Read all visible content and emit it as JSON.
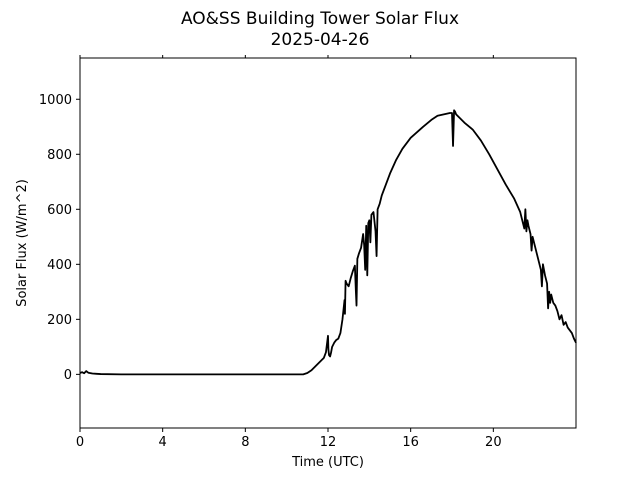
{
  "chart_data": {
    "type": "line",
    "title": "AO&SS Building Tower Solar Flux",
    "subtitle": "2025-04-26",
    "xlabel": "Time (UTC)",
    "ylabel": "Solar Flux (W/m^2)",
    "xlim": [
      0,
      24
    ],
    "ylim": [
      -195,
      1150
    ],
    "x_ticks": [
      0,
      4,
      8,
      12,
      16,
      20
    ],
    "x_tick_labels": [
      "0",
      "4",
      "8",
      "12",
      "16",
      "20"
    ],
    "y_ticks": [
      0,
      200,
      400,
      600,
      800,
      1000
    ],
    "y_tick_labels": [
      "0",
      "200",
      "400",
      "600",
      "800",
      "1000"
    ],
    "grid": false,
    "series_color": "#000000",
    "series": [
      {
        "x": [
          0,
          0.1,
          0.2,
          0.3,
          0.4,
          0.6,
          0.8,
          1.0,
          2,
          4,
          6,
          8,
          10,
          10.8,
          11.0,
          11.2,
          11.4,
          11.6,
          11.8,
          11.9,
          12.0,
          12.02,
          12.05,
          12.1,
          12.15,
          12.2,
          12.3,
          12.4,
          12.5,
          12.6,
          12.7,
          12.8,
          12.82,
          12.85,
          12.9,
          13.0,
          13.1,
          13.2,
          13.3,
          13.35,
          13.38,
          13.42,
          13.5,
          13.6,
          13.7,
          13.75,
          13.8,
          13.85,
          13.9,
          13.95,
          14.0,
          14.05,
          14.1,
          14.2,
          14.3,
          14.35,
          14.4,
          14.45,
          14.5,
          14.6,
          14.8,
          15.0,
          15.3,
          15.6,
          16.0,
          16.3,
          16.6,
          17.0,
          17.3,
          17.6,
          17.9,
          18.0,
          18.05,
          18.1,
          18.15,
          18.2,
          18.4,
          18.6,
          19.0,
          19.4,
          19.8,
          20.2,
          20.6,
          21.0,
          21.3,
          21.5,
          21.55,
          21.6,
          21.65,
          21.7,
          21.8,
          21.85,
          21.9,
          22.0,
          22.1,
          22.2,
          22.3,
          22.35,
          22.4,
          22.5,
          22.6,
          22.65,
          22.7,
          22.75,
          22.8,
          22.9,
          23.0,
          23.1,
          23.2,
          23.3,
          23.4,
          23.5,
          23.6,
          23.7,
          23.8,
          23.9,
          24.0
        ],
        "y": [
          5,
          8,
          4,
          12,
          6,
          3,
          2,
          1,
          0,
          0,
          0,
          0,
          0,
          0,
          5,
          15,
          30,
          45,
          60,
          80,
          140,
          90,
          70,
          65,
          80,
          100,
          115,
          125,
          130,
          150,
          200,
          270,
          220,
          340,
          330,
          320,
          350,
          375,
          395,
          300,
          250,
          420,
          440,
          460,
          510,
          470,
          380,
          540,
          360,
          550,
          560,
          480,
          580,
          590,
          520,
          430,
          600,
          610,
          620,
          650,
          690,
          730,
          780,
          820,
          860,
          880,
          900,
          925,
          940,
          945,
          950,
          950,
          830,
          960,
          955,
          945,
          930,
          915,
          890,
          850,
          800,
          745,
          690,
          640,
          590,
          530,
          600,
          520,
          560,
          540,
          510,
          450,
          500,
          470,
          440,
          410,
          380,
          320,
          400,
          360,
          330,
          240,
          300,
          260,
          290,
          260,
          250,
          230,
          200,
          215,
          180,
          190,
          170,
          160,
          150,
          130,
          115
        ]
      }
    ]
  }
}
